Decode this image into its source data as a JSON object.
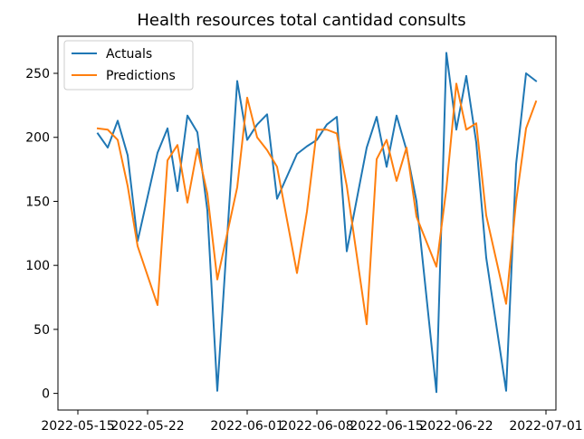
{
  "chart_data": {
    "type": "line",
    "title": "Health resources total cantidad consults",
    "xlabel": "",
    "ylabel": "",
    "x_axis_type": "date",
    "xlim": [
      "2022-05-13",
      "2022-07-02"
    ],
    "ylim": [
      -13,
      279
    ],
    "x_ticks": [
      "2022-05-15",
      "2022-05-22",
      "2022-06-01",
      "2022-06-08",
      "2022-06-15",
      "2022-06-22",
      "2022-07-01"
    ],
    "y_ticks": [
      0,
      50,
      100,
      150,
      200,
      250
    ],
    "legend_position": "upper left",
    "grid": false,
    "series": [
      {
        "name": "Actuals",
        "color": "#1f77b4",
        "points": [
          [
            "2022-05-17",
            203
          ],
          [
            "2022-05-18",
            192
          ],
          [
            "2022-05-19",
            213
          ],
          [
            "2022-05-20",
            186
          ],
          [
            "2022-05-21",
            119
          ],
          [
            "2022-05-23",
            188
          ],
          [
            "2022-05-24",
            207
          ],
          [
            "2022-05-25",
            158
          ],
          [
            "2022-05-26",
            217
          ],
          [
            "2022-05-27",
            204
          ],
          [
            "2022-05-28",
            143
          ],
          [
            "2022-05-29",
            2
          ],
          [
            "2022-05-31",
            244
          ],
          [
            "2022-06-01",
            198
          ],
          [
            "2022-06-02",
            210
          ],
          [
            "2022-06-03",
            218
          ],
          [
            "2022-06-04",
            152
          ],
          [
            "2022-06-06",
            187
          ],
          [
            "2022-06-07",
            193
          ],
          [
            "2022-06-08",
            198
          ],
          [
            "2022-06-09",
            210
          ],
          [
            "2022-06-10",
            216
          ],
          [
            "2022-06-11",
            111
          ],
          [
            "2022-06-13",
            192
          ],
          [
            "2022-06-14",
            216
          ],
          [
            "2022-06-15",
            177
          ],
          [
            "2022-06-16",
            217
          ],
          [
            "2022-06-17",
            190
          ],
          [
            "2022-06-18",
            150
          ],
          [
            "2022-06-20",
            1
          ],
          [
            "2022-06-21",
            266
          ],
          [
            "2022-06-22",
            206
          ],
          [
            "2022-06-23",
            248
          ],
          [
            "2022-06-24",
            196
          ],
          [
            "2022-06-25",
            106
          ],
          [
            "2022-06-27",
            2
          ],
          [
            "2022-06-28",
            179
          ],
          [
            "2022-06-29",
            250
          ],
          [
            "2022-06-30",
            244
          ]
        ]
      },
      {
        "name": "Predictions",
        "color": "#ff7f0e",
        "points": [
          [
            "2022-05-17",
            207
          ],
          [
            "2022-05-18",
            206
          ],
          [
            "2022-05-19",
            198
          ],
          [
            "2022-05-20",
            162
          ],
          [
            "2022-05-21",
            115
          ],
          [
            "2022-05-23",
            69
          ],
          [
            "2022-05-24",
            182
          ],
          [
            "2022-05-25",
            194
          ],
          [
            "2022-05-26",
            149
          ],
          [
            "2022-05-27",
            191
          ],
          [
            "2022-05-28",
            156
          ],
          [
            "2022-05-29",
            89
          ],
          [
            "2022-05-31",
            161
          ],
          [
            "2022-06-01",
            231
          ],
          [
            "2022-06-02",
            200
          ],
          [
            "2022-06-03",
            190
          ],
          [
            "2022-06-04",
            177
          ],
          [
            "2022-06-06",
            94
          ],
          [
            "2022-06-07",
            142
          ],
          [
            "2022-06-08",
            206
          ],
          [
            "2022-06-09",
            206
          ],
          [
            "2022-06-10",
            203
          ],
          [
            "2022-06-11",
            162
          ],
          [
            "2022-06-13",
            54
          ],
          [
            "2022-06-14",
            183
          ],
          [
            "2022-06-15",
            198
          ],
          [
            "2022-06-16",
            166
          ],
          [
            "2022-06-17",
            192
          ],
          [
            "2022-06-18",
            138
          ],
          [
            "2022-06-20",
            99
          ],
          [
            "2022-06-21",
            160
          ],
          [
            "2022-06-22",
            242
          ],
          [
            "2022-06-23",
            206
          ],
          [
            "2022-06-24",
            211
          ],
          [
            "2022-06-25",
            139
          ],
          [
            "2022-06-27",
            70
          ],
          [
            "2022-06-28",
            150
          ],
          [
            "2022-06-29",
            207
          ],
          [
            "2022-06-30",
            228
          ]
        ]
      }
    ]
  }
}
